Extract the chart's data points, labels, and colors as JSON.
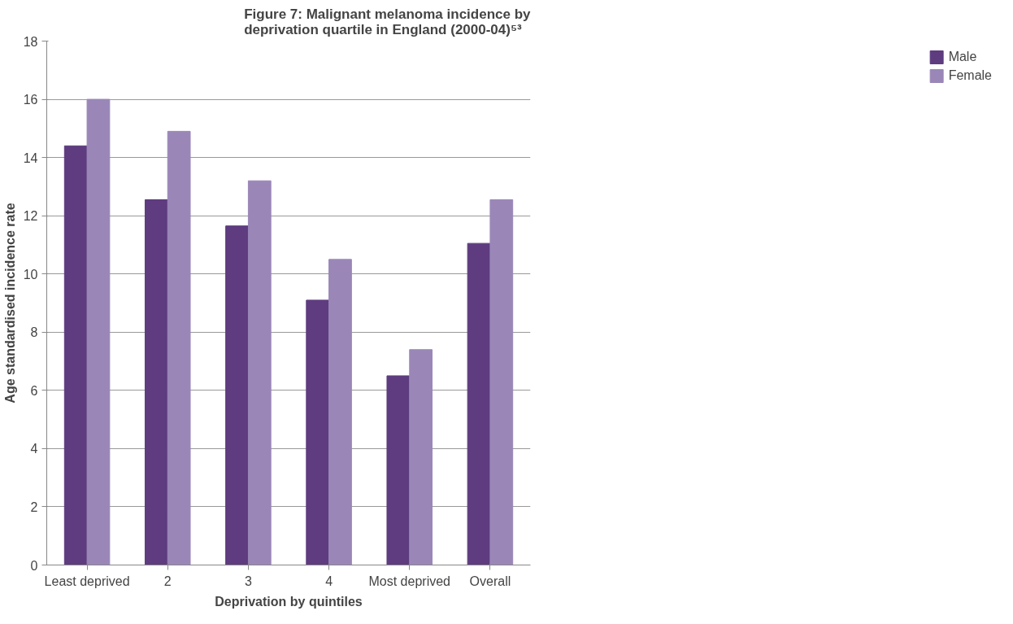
{
  "chart_data": {
    "type": "bar",
    "title": "Figure 7: Malignant melanoma incidence by\ndeprivation quartile in England (2000-04)⁵³",
    "xlabel": "Deprivation by quintiles",
    "ylabel": "Age standardised incidence rate",
    "categories": [
      "Least deprived",
      "2",
      "3",
      "4",
      "Most deprived",
      "Overall"
    ],
    "series": [
      {
        "name": "Male",
        "color": "#5e3c7f",
        "values": [
          14.4,
          12.55,
          11.65,
          9.1,
          6.5,
          11.05
        ]
      },
      {
        "name": "Female",
        "color": "#9a87b8",
        "values": [
          16.0,
          14.9,
          13.2,
          10.5,
          7.4,
          12.55
        ]
      }
    ],
    "ylim": [
      0,
      18
    ],
    "yticks": [
      0,
      2,
      4,
      6,
      8,
      10,
      12,
      14,
      16,
      18
    ],
    "grid": "y",
    "legend": "right"
  }
}
